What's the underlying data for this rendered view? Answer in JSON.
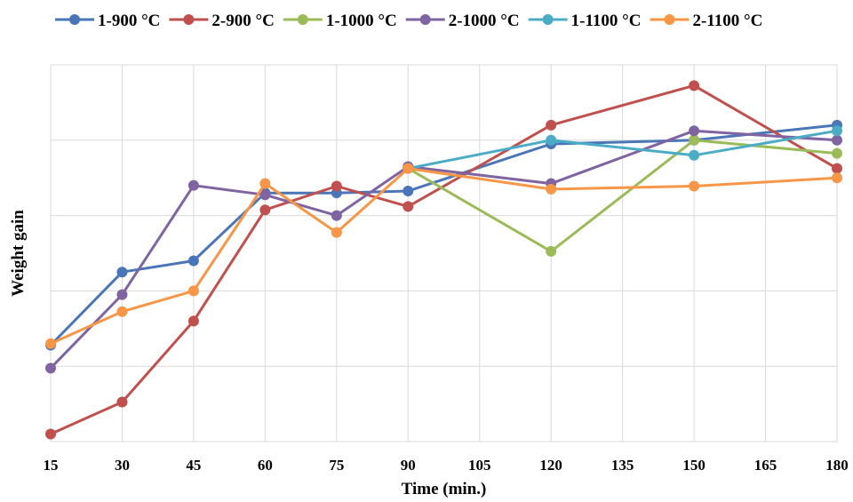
{
  "chart_data": {
    "type": "line",
    "title": "",
    "xlabel": "Time (min.)",
    "ylabel": "Weight gain",
    "x": [
      15,
      30,
      45,
      60,
      75,
      90,
      105,
      120,
      135,
      150,
      165,
      180
    ],
    "xlim": [
      15,
      180
    ],
    "ylim": [
      0,
      100
    ],
    "show_y_tick_labels": false,
    "grid": true,
    "legend_position": "top",
    "series": [
      {
        "name": "1-900 °C",
        "color": "#4a76b8",
        "points": [
          [
            15,
            25.6
          ],
          [
            30,
            45.0
          ],
          [
            45,
            48.0
          ],
          [
            60,
            66.0
          ],
          [
            75,
            66.0
          ],
          [
            90,
            66.5
          ],
          [
            120,
            79.0
          ],
          [
            150,
            80.0
          ],
          [
            180,
            84.0
          ]
        ]
      },
      {
        "name": "2-900 °C",
        "color": "#c0504d",
        "points": [
          [
            15,
            2.0
          ],
          [
            30,
            10.5
          ],
          [
            45,
            32.0
          ],
          [
            60,
            61.5
          ],
          [
            75,
            67.8
          ],
          [
            90,
            62.4
          ],
          [
            120,
            84.0
          ],
          [
            150,
            94.5
          ],
          [
            180,
            72.5
          ]
        ]
      },
      {
        "name": "1-1000 °C",
        "color": "#9bbb59",
        "points": [
          [
            90,
            72.5
          ],
          [
            120,
            50.5
          ],
          [
            150,
            80.0
          ],
          [
            180,
            76.5
          ]
        ]
      },
      {
        "name": "2-1000 °C",
        "color": "#8064a2",
        "points": [
          [
            15,
            19.5
          ],
          [
            30,
            39.0
          ],
          [
            45,
            68.0
          ],
          [
            60,
            65.5
          ],
          [
            75,
            60.0
          ],
          [
            90,
            73.0
          ],
          [
            120,
            68.5
          ],
          [
            150,
            82.5
          ],
          [
            180,
            80.0
          ]
        ]
      },
      {
        "name": "1-1100 °C",
        "color": "#4bacc6",
        "points": [
          [
            90,
            72.5
          ],
          [
            120,
            80.0
          ],
          [
            150,
            76.0
          ],
          [
            180,
            82.5
          ]
        ]
      },
      {
        "name": "2-1100 °C",
        "color": "#f79646",
        "points": [
          [
            15,
            26.0
          ],
          [
            30,
            34.5
          ],
          [
            45,
            40.0
          ],
          [
            60,
            68.5
          ],
          [
            75,
            55.5
          ],
          [
            90,
            72.5
          ],
          [
            120,
            67.0
          ],
          [
            150,
            67.8
          ],
          [
            180,
            70.0
          ]
        ]
      }
    ]
  }
}
